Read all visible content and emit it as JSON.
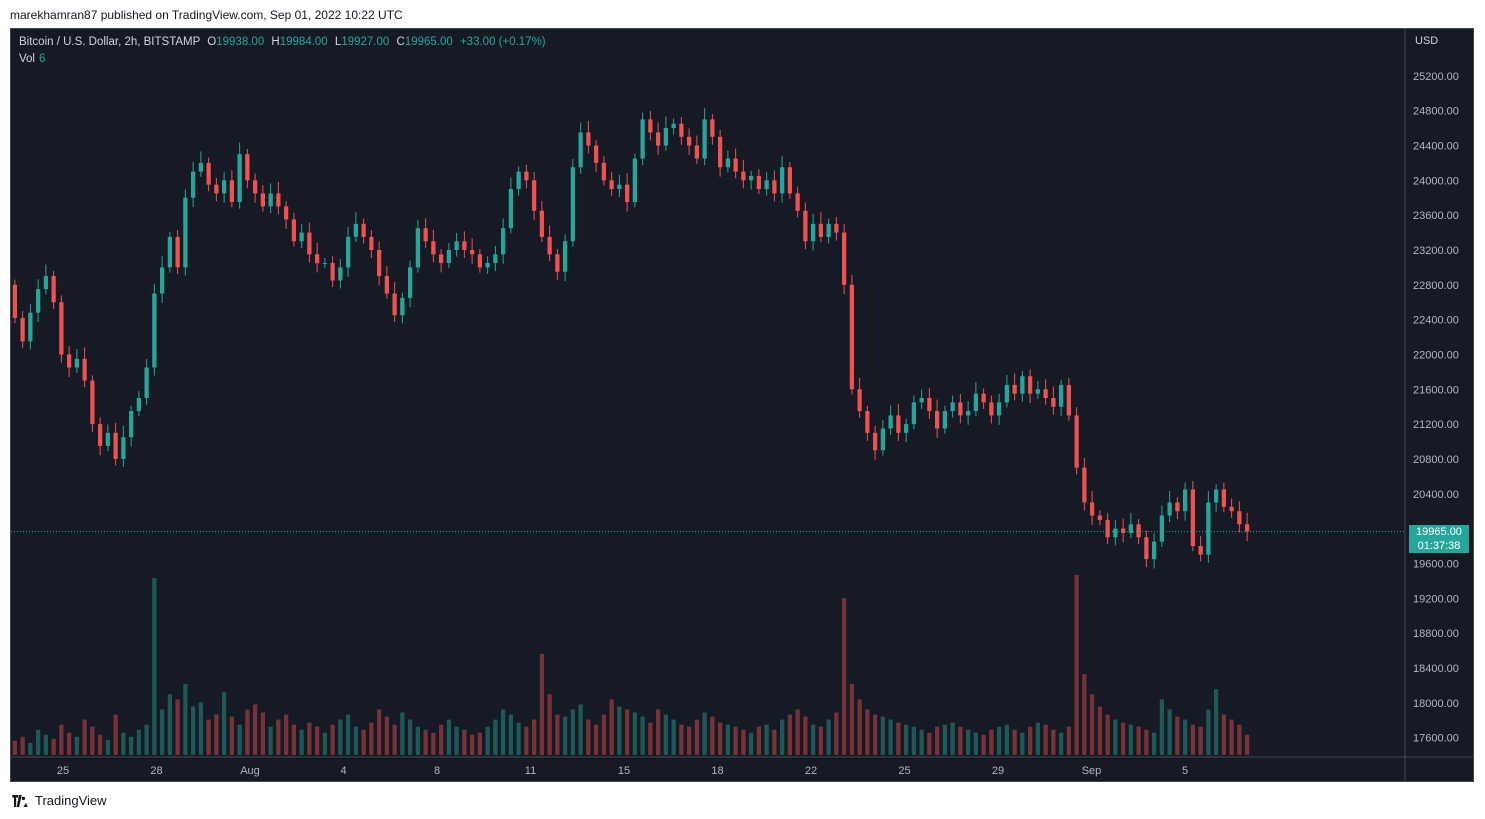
{
  "published_by": "marekhamran87 published on TradingView.com, Sep 01, 2022 10:22 UTC",
  "legend": {
    "symbol": "Bitcoin / U.S. Dollar, 2h, BITSTAMP",
    "open_label": "O",
    "open": "19938.00",
    "high_label": "H",
    "high": "19984.00",
    "low_label": "L",
    "low": "19927.00",
    "close_label": "C",
    "close": "19965.00",
    "change": "+33.00 (+0.17%)",
    "vol_label": "Vol",
    "vol_value": "6"
  },
  "price_axis": {
    "currency": "USD",
    "last_price": "19965.00",
    "countdown": "01:37:38"
  },
  "footer": {
    "brand": "TradingView"
  },
  "colors": {
    "up": "#26a69a",
    "down": "#ef5350",
    "background": "#161a25",
    "text": "#b2b5be"
  },
  "chart_data": {
    "type": "candlestick",
    "title": "Bitcoin / U.S. Dollar, 2h, BITSTAMP",
    "ylim": [
      17400,
      25600
    ],
    "y_ticks": [
      17600,
      18000,
      18400,
      18800,
      19200,
      19600,
      20000,
      20400,
      20800,
      21200,
      21600,
      22000,
      22400,
      22800,
      23200,
      23600,
      24000,
      24400,
      24800,
      25200
    ],
    "y_tick_labels": [
      "17600.00",
      "18000.00",
      "18400.00",
      "18800.00",
      "19200.00",
      "19600.00",
      "20000.00",
      "20400.00",
      "20800.00",
      "21200.00",
      "21600.00",
      "22000.00",
      "22400.00",
      "22800.00",
      "23200.00",
      "23600.00",
      "24000.00",
      "24400.00",
      "24800.00",
      "25200.00"
    ],
    "x_ticks": [
      "25",
      "28",
      "Aug",
      "4",
      "8",
      "11",
      "15",
      "18",
      "22",
      "25",
      "29",
      "Sep",
      "5"
    ],
    "last_price": 19965,
    "series": [
      {
        "name": "price",
        "values": [
          [
            22800,
            22420
          ],
          [
            22420,
            22150
          ],
          [
            22150,
            22480
          ],
          [
            22480,
            22750
          ],
          [
            22750,
            22900
          ],
          [
            22900,
            22600
          ],
          [
            22600,
            22000
          ],
          [
            22000,
            21850
          ],
          [
            21850,
            21950
          ],
          [
            21950,
            21700
          ],
          [
            21700,
            21200
          ],
          [
            21200,
            20950
          ],
          [
            20950,
            21100
          ],
          [
            21100,
            20800
          ],
          [
            20800,
            21050
          ],
          [
            21050,
            21350
          ],
          [
            21350,
            21500
          ],
          [
            21500,
            21850
          ],
          [
            21850,
            22700
          ],
          [
            22700,
            23000
          ],
          [
            23000,
            23350
          ],
          [
            23350,
            23000
          ],
          [
            23000,
            23800
          ],
          [
            23800,
            24100
          ],
          [
            24100,
            24200
          ],
          [
            24200,
            23950
          ],
          [
            23950,
            23850
          ],
          [
            23850,
            24000
          ],
          [
            24000,
            23750
          ],
          [
            23750,
            24300
          ],
          [
            24300,
            24000
          ],
          [
            24000,
            23850
          ],
          [
            23850,
            23700
          ],
          [
            23700,
            23850
          ],
          [
            23850,
            23700
          ],
          [
            23700,
            23550
          ],
          [
            23550,
            23300
          ],
          [
            23300,
            23400
          ],
          [
            23400,
            23150
          ],
          [
            23150,
            23050
          ],
          [
            23050,
            23050
          ],
          [
            23050,
            22850
          ],
          [
            22850,
            23000
          ],
          [
            23000,
            23350
          ],
          [
            23350,
            23500
          ],
          [
            23500,
            23350
          ],
          [
            23350,
            23200
          ],
          [
            23200,
            22900
          ],
          [
            22900,
            22700
          ],
          [
            22700,
            22450
          ],
          [
            22450,
            22650
          ],
          [
            22650,
            23000
          ],
          [
            23000,
            23450
          ],
          [
            23450,
            23300
          ],
          [
            23300,
            23150
          ],
          [
            23150,
            23050
          ],
          [
            23050,
            23200
          ],
          [
            23200,
            23300
          ],
          [
            23300,
            23200
          ],
          [
            23200,
            23150
          ],
          [
            23150,
            23000
          ],
          [
            23000,
            23050
          ],
          [
            23050,
            23150
          ],
          [
            23150,
            23450
          ],
          [
            23450,
            23900
          ],
          [
            23900,
            24100
          ],
          [
            24100,
            24000
          ],
          [
            24000,
            23650
          ],
          [
            23650,
            23350
          ],
          [
            23350,
            23150
          ],
          [
            23150,
            22950
          ],
          [
            22950,
            23300
          ],
          [
            23300,
            24150
          ],
          [
            24150,
            24550
          ],
          [
            24550,
            24400
          ],
          [
            24400,
            24200
          ],
          [
            24200,
            24000
          ],
          [
            24000,
            23900
          ],
          [
            23900,
            23950
          ],
          [
            23950,
            23750
          ],
          [
            23750,
            24250
          ],
          [
            24250,
            24700
          ],
          [
            24700,
            24550
          ],
          [
            24550,
            24400
          ],
          [
            24400,
            24600
          ],
          [
            24600,
            24650
          ],
          [
            24650,
            24500
          ],
          [
            24500,
            24400
          ],
          [
            24400,
            24250
          ],
          [
            24250,
            24700
          ],
          [
            24700,
            24500
          ],
          [
            24500,
            24150
          ],
          [
            24150,
            24250
          ],
          [
            24250,
            24100
          ],
          [
            24100,
            24000
          ],
          [
            24000,
            24050
          ],
          [
            24050,
            23900
          ],
          [
            23900,
            24000
          ],
          [
            24000,
            23850
          ],
          [
            23850,
            24150
          ],
          [
            24150,
            23850
          ],
          [
            23850,
            23650
          ],
          [
            23650,
            23300
          ],
          [
            23300,
            23500
          ],
          [
            23500,
            23350
          ],
          [
            23350,
            23500
          ],
          [
            23500,
            23400
          ],
          [
            23400,
            22800
          ],
          [
            22800,
            21600
          ],
          [
            21600,
            21350
          ],
          [
            21350,
            21100
          ],
          [
            21100,
            20900
          ],
          [
            20900,
            21150
          ],
          [
            21150,
            21300
          ],
          [
            21300,
            21100
          ],
          [
            21100,
            21200
          ],
          [
            21200,
            21450
          ],
          [
            21450,
            21500
          ],
          [
            21500,
            21350
          ],
          [
            21350,
            21150
          ],
          [
            21150,
            21350
          ],
          [
            21350,
            21450
          ],
          [
            21450,
            21300
          ],
          [
            21300,
            21350
          ],
          [
            21350,
            21550
          ],
          [
            21550,
            21450
          ],
          [
            21450,
            21300
          ],
          [
            21300,
            21450
          ],
          [
            21450,
            21650
          ],
          [
            21650,
            21550
          ],
          [
            21550,
            21750
          ],
          [
            21750,
            21550
          ],
          [
            21550,
            21600
          ],
          [
            21600,
            21500
          ],
          [
            21500,
            21400
          ],
          [
            21400,
            21650
          ],
          [
            21650,
            21300
          ],
          [
            21300,
            20700
          ],
          [
            20700,
            20300
          ],
          [
            20300,
            20150
          ],
          [
            20150,
            20100
          ],
          [
            20100,
            19900
          ],
          [
            19900,
            20000
          ],
          [
            20000,
            19950
          ],
          [
            19950,
            20050
          ],
          [
            20050,
            19900
          ],
          [
            19900,
            19650
          ],
          [
            19650,
            19850
          ],
          [
            19850,
            20150
          ],
          [
            20150,
            20300
          ],
          [
            20300,
            20200
          ],
          [
            20200,
            20450
          ],
          [
            20450,
            19800
          ],
          [
            19800,
            19700
          ],
          [
            19700,
            20300
          ],
          [
            20300,
            20450
          ],
          [
            20450,
            20250
          ],
          [
            20250,
            20200
          ],
          [
            20200,
            20050
          ],
          [
            20050,
            19965
          ]
        ]
      },
      {
        "name": "volume",
        "values": [
          14,
          18,
          12,
          25,
          20,
          16,
          30,
          22,
          18,
          35,
          28,
          20,
          15,
          40,
          22,
          18,
          25,
          30,
          175,
          45,
          60,
          55,
          70,
          48,
          52,
          35,
          40,
          62,
          38,
          30,
          45,
          50,
          42,
          28,
          35,
          40,
          30,
          25,
          32,
          28,
          22,
          30,
          35,
          40,
          28,
          25,
          32,
          45,
          38,
          30,
          42,
          35,
          28,
          25,
          22,
          30,
          35,
          28,
          25,
          20,
          22,
          28,
          35,
          45,
          40,
          32,
          28,
          35,
          100,
          60,
          40,
          38,
          45,
          50,
          35,
          30,
          40,
          55,
          48,
          45,
          42,
          38,
          32,
          45,
          40,
          35,
          30,
          28,
          35,
          42,
          38,
          32,
          30,
          28,
          25,
          22,
          28,
          30,
          25,
          35,
          40,
          45,
          38,
          30,
          28,
          35,
          42,
          155,
          70,
          55,
          45,
          40,
          38,
          35,
          32,
          30,
          28,
          25,
          22,
          28,
          30,
          32,
          28,
          25,
          22,
          20,
          25,
          28,
          30,
          25,
          22,
          28,
          32,
          30,
          25,
          22,
          28,
          178,
          80,
          60,
          48,
          40,
          35,
          32,
          30,
          28,
          25,
          22,
          55,
          45,
          38,
          35,
          30,
          28,
          45,
          65,
          40,
          35,
          30,
          20
        ]
      }
    ]
  }
}
